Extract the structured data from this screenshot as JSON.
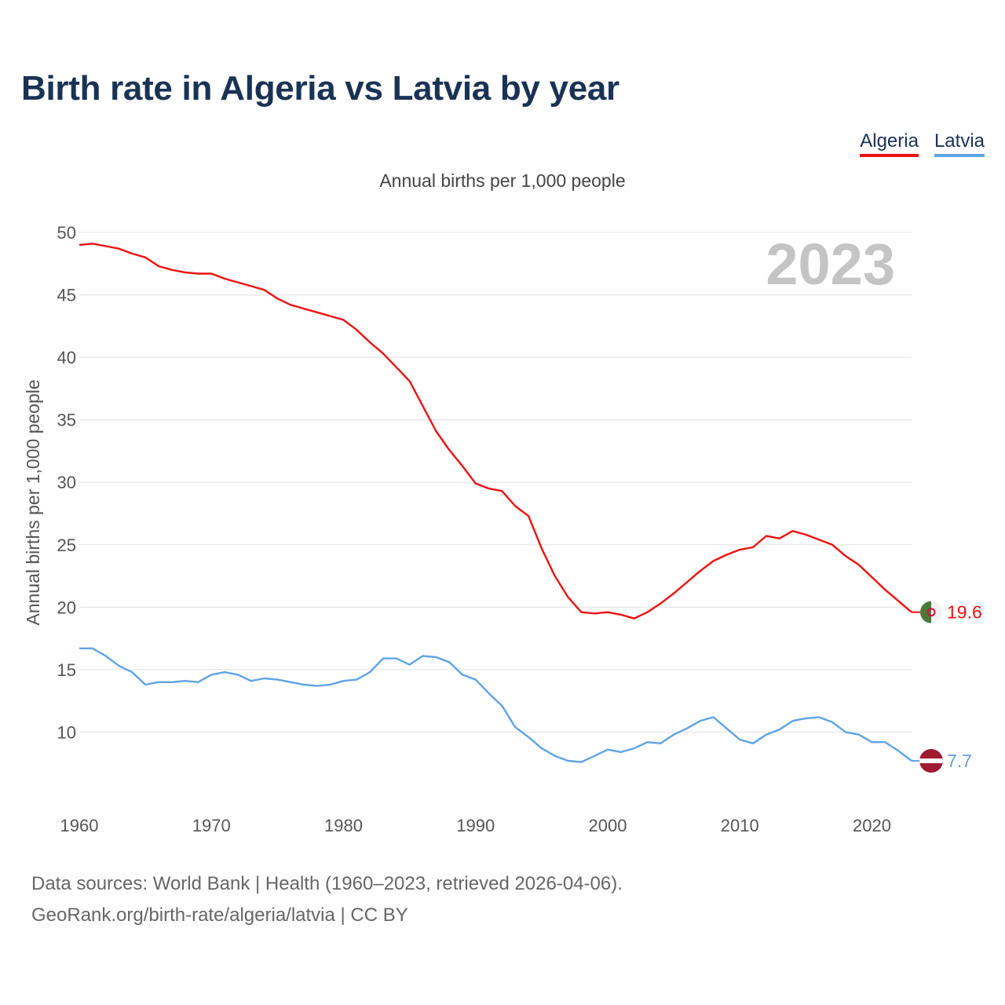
{
  "page": {
    "title": "Birth rate in Algeria vs Latvia by year",
    "footer_line1": "Data sources: World Bank | Health (1960–2023, retrieved 2026-04-06).",
    "footer_line2": "GeoRank.org/birth-rate/algeria/latvia | CC BY"
  },
  "chart_data": {
    "type": "line",
    "title": "Birth rate in Algeria vs Latvia by year",
    "subtitle": "Annual births per 1,000 people",
    "xlabel": "",
    "ylabel": "Annual births per 1,000 people",
    "watermark_year": "2023",
    "xlim": [
      1960,
      2023
    ],
    "ylim": [
      5,
      50
    ],
    "x_ticks": [
      1960,
      1970,
      1980,
      1990,
      2000,
      2010,
      2020
    ],
    "y_ticks": [
      10,
      15,
      20,
      25,
      30,
      35,
      40,
      45,
      50
    ],
    "grid": true,
    "legend_position": "top-right",
    "x": [
      1960,
      1961,
      1962,
      1963,
      1964,
      1965,
      1966,
      1967,
      1968,
      1969,
      1970,
      1971,
      1972,
      1973,
      1974,
      1975,
      1976,
      1977,
      1978,
      1979,
      1980,
      1981,
      1982,
      1983,
      1984,
      1985,
      1986,
      1987,
      1988,
      1989,
      1990,
      1991,
      1992,
      1993,
      1994,
      1995,
      1996,
      1997,
      1998,
      1999,
      2000,
      2001,
      2002,
      2003,
      2004,
      2005,
      2006,
      2007,
      2008,
      2009,
      2010,
      2011,
      2012,
      2013,
      2014,
      2015,
      2016,
      2017,
      2018,
      2019,
      2020,
      2021,
      2022,
      2023
    ],
    "series": [
      {
        "name": "Algeria",
        "color": "#ee1111",
        "end_label": "19.6",
        "values": [
          49.0,
          49.1,
          48.9,
          48.7,
          48.3,
          48.0,
          47.3,
          47.0,
          46.8,
          46.7,
          46.7,
          46.3,
          46.0,
          45.7,
          45.4,
          44.7,
          44.2,
          43.9,
          43.6,
          43.3,
          43.0,
          42.2,
          41.2,
          40.3,
          39.2,
          38.1,
          36.1,
          34.1,
          32.6,
          31.3,
          29.9,
          29.5,
          29.3,
          28.1,
          27.3,
          24.7,
          22.5,
          20.8,
          19.6,
          19.5,
          19.6,
          19.4,
          19.1,
          19.6,
          20.3,
          21.1,
          22.0,
          22.9,
          23.7,
          24.2,
          24.6,
          24.8,
          25.7,
          25.5,
          26.1,
          25.8,
          25.4,
          25.0,
          24.1,
          23.4,
          22.4,
          21.4,
          20.5,
          19.6
        ]
      },
      {
        "name": "Latvia",
        "color": "#5fa3e5",
        "end_label": "7.7",
        "values": [
          16.7,
          16.7,
          16.1,
          15.3,
          14.8,
          13.8,
          14.0,
          14.0,
          14.1,
          14.0,
          14.6,
          14.8,
          14.6,
          14.1,
          14.3,
          14.2,
          14.0,
          13.8,
          13.7,
          13.8,
          14.1,
          14.2,
          14.8,
          15.9,
          15.9,
          15.4,
          16.1,
          16.0,
          15.6,
          14.6,
          14.2,
          13.1,
          12.1,
          10.4,
          9.6,
          8.7,
          8.1,
          7.7,
          7.6,
          8.1,
          8.6,
          8.4,
          8.7,
          9.2,
          9.1,
          9.8,
          10.3,
          10.9,
          11.2,
          10.3,
          9.4,
          9.1,
          9.8,
          10.2,
          10.9,
          11.1,
          11.2,
          10.8,
          10.0,
          9.8,
          9.2,
          9.2,
          8.5,
          7.7
        ]
      }
    ]
  }
}
